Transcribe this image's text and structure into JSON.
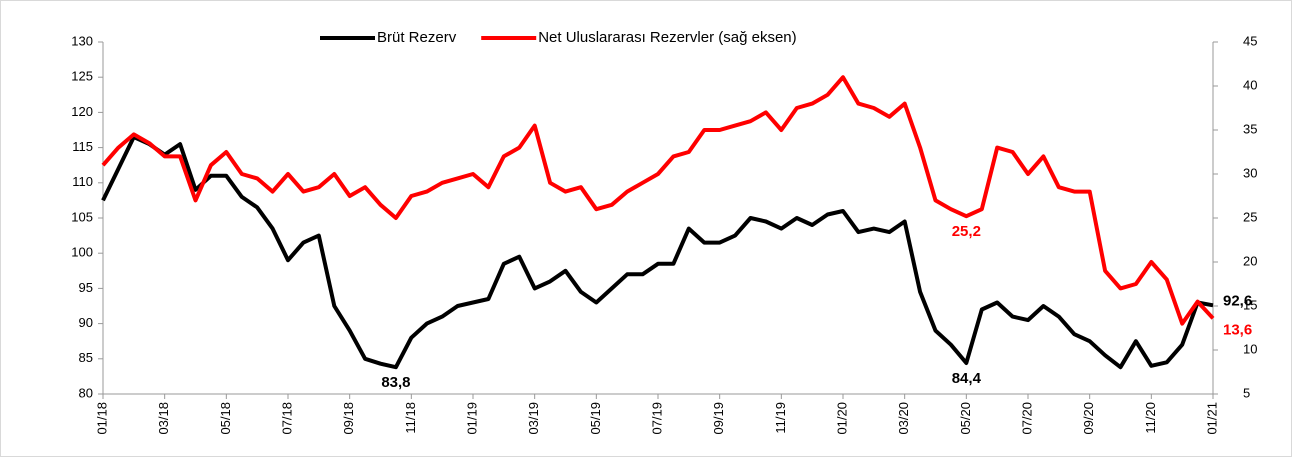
{
  "chart_data": {
    "type": "line",
    "categories": [
      "01/18",
      null,
      null,
      null,
      "03/18",
      null,
      null,
      null,
      "05/18",
      null,
      null,
      null,
      "07/18",
      null,
      null,
      null,
      "09/18",
      null,
      null,
      null,
      "11/18",
      null,
      null,
      null,
      "01/19",
      null,
      null,
      null,
      "03/19",
      null,
      null,
      null,
      "05/19",
      null,
      null,
      null,
      "07/19",
      null,
      null,
      null,
      "09/19",
      null,
      null,
      null,
      "11/19",
      null,
      null,
      null,
      "01/20",
      null,
      null,
      null,
      "03/20",
      null,
      null,
      null,
      "05/20",
      null,
      null,
      null,
      "07/20",
      null,
      null,
      null,
      "09/20",
      null,
      null,
      null,
      "11/20",
      null,
      null,
      null,
      "01/21"
    ],
    "series": [
      {
        "name": "Brüt Rezerv",
        "color": "#000000",
        "axis": "y",
        "values": [
          107.5,
          112,
          116.5,
          115.5,
          114,
          115.5,
          109,
          111,
          111,
          108,
          106.5,
          103.5,
          99,
          101.5,
          102.5,
          92.5,
          89,
          85,
          84.3,
          83.8,
          88,
          90,
          91,
          92.5,
          93,
          93.5,
          98.5,
          99.5,
          95,
          96,
          97.5,
          94.5,
          93,
          95,
          97,
          97,
          98.5,
          98.5,
          103.5,
          101.5,
          101.5,
          102.5,
          105,
          104.5,
          103.5,
          105,
          104,
          105.5,
          106,
          103,
          103.5,
          103,
          104.5,
          94.5,
          89,
          87,
          84.4,
          92,
          93,
          91,
          90.5,
          92.5,
          91,
          88.5,
          87.5,
          85.5,
          83.8,
          87.5,
          84,
          84.5,
          87,
          93,
          92.6
        ],
        "value_labels": [
          null,
          null,
          null,
          null,
          null,
          null,
          null,
          null,
          null,
          null,
          null,
          null,
          null,
          null,
          null,
          null,
          null,
          null,
          null,
          "83,8",
          null,
          null,
          null,
          null,
          null,
          null,
          null,
          null,
          null,
          null,
          null,
          null,
          null,
          null,
          null,
          null,
          null,
          null,
          null,
          null,
          null,
          null,
          null,
          null,
          null,
          null,
          null,
          null,
          null,
          null,
          null,
          null,
          null,
          null,
          null,
          null,
          "84,4",
          null,
          null,
          null,
          null,
          null,
          null,
          null,
          null,
          null,
          null,
          null,
          null,
          null,
          null,
          null,
          "92,6"
        ]
      },
      {
        "name": "Net Uluslararası Rezervler (sağ eksen)",
        "color": "#ff0000",
        "axis": "y2",
        "values": [
          31,
          33,
          34.5,
          33.5,
          32,
          32,
          27,
          31,
          32.5,
          30,
          29.5,
          28,
          30,
          28,
          28.5,
          30,
          27.5,
          28.5,
          26.5,
          25,
          27.5,
          28,
          29,
          29.5,
          30,
          28.5,
          32,
          33,
          35.5,
          29,
          28,
          28.5,
          26,
          26.5,
          28,
          29,
          30,
          32,
          32.5,
          35,
          35,
          35.5,
          36,
          37,
          35,
          37.5,
          38,
          39,
          41,
          38,
          37.5,
          36.5,
          38,
          33,
          27,
          26,
          25.2,
          26,
          33,
          32.5,
          30,
          32,
          28.5,
          28,
          28,
          19,
          17,
          17.5,
          20,
          18,
          13,
          15.5,
          13.6
        ],
        "value_labels": [
          null,
          null,
          null,
          null,
          null,
          null,
          null,
          null,
          null,
          null,
          null,
          null,
          null,
          null,
          null,
          null,
          null,
          null,
          null,
          null,
          null,
          null,
          null,
          null,
          null,
          null,
          null,
          null,
          null,
          null,
          null,
          null,
          null,
          null,
          null,
          null,
          null,
          null,
          null,
          null,
          null,
          null,
          null,
          null,
          null,
          null,
          null,
          null,
          null,
          null,
          null,
          null,
          null,
          null,
          null,
          null,
          "25,2",
          null,
          null,
          null,
          null,
          null,
          null,
          null,
          null,
          null,
          null,
          null,
          null,
          null,
          null,
          null,
          "13,6"
        ]
      }
    ],
    "ylim": [
      80,
      130
    ],
    "yticks": [
      80,
      85,
      90,
      95,
      100,
      105,
      110,
      115,
      120,
      125,
      130
    ],
    "y2lim": [
      5,
      45
    ],
    "y2ticks": [
      5,
      10,
      15,
      20,
      25,
      30,
      35,
      40,
      45
    ],
    "legend": "top"
  }
}
